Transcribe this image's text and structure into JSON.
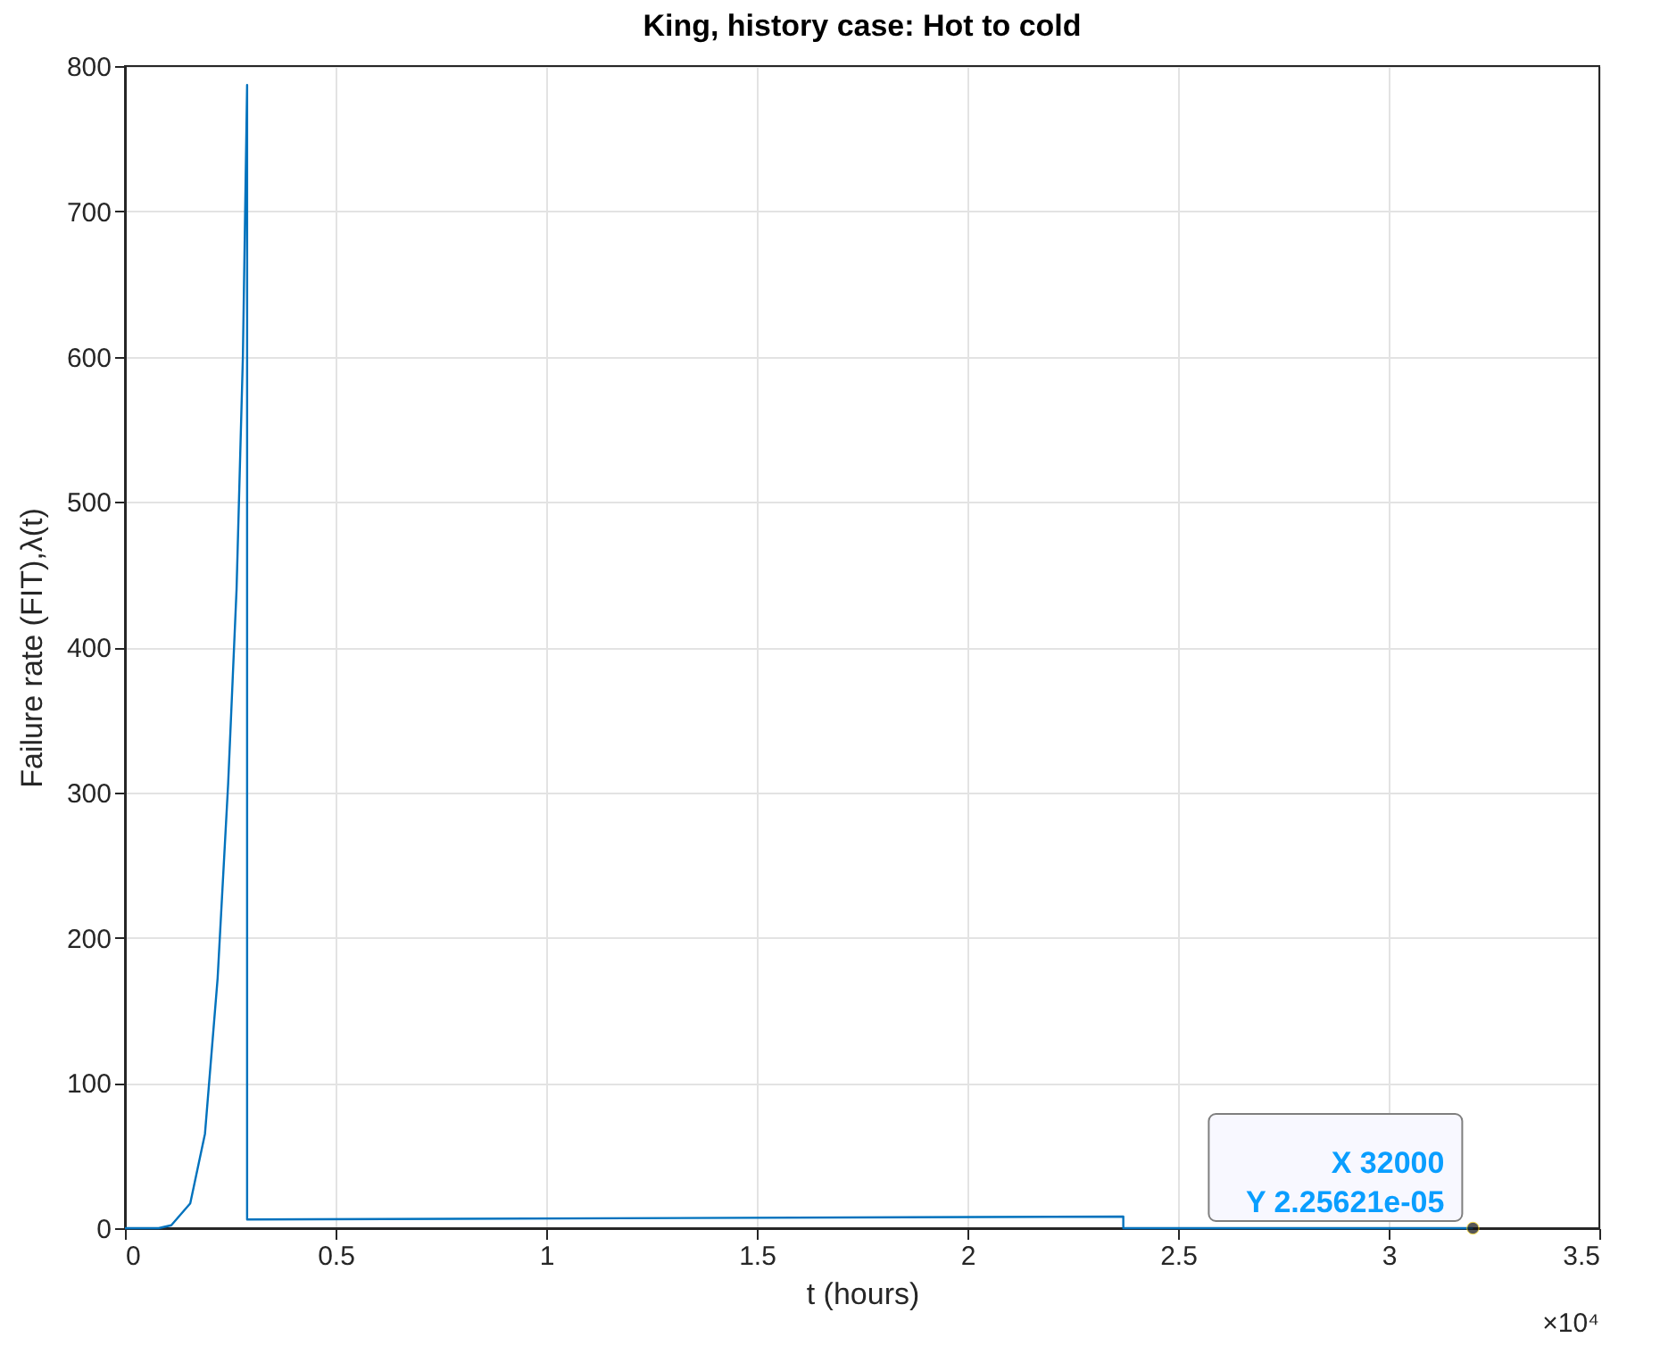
{
  "chart_data": {
    "type": "line",
    "title": "King, history case: Hot to cold",
    "xlabel": "t (hours)",
    "ylabel": "Failure rate (FIT),λ(t)",
    "series": [
      {
        "color": "#0072bd",
        "x": [
          0,
          0.08,
          0.11,
          0.155,
          0.19,
          0.22,
          0.245,
          0.265,
          0.28,
          0.29,
          0.29,
          2.37,
          2.37,
          3.2
        ],
        "values": [
          0,
          0,
          2,
          17,
          65,
          172,
          306,
          440,
          600,
          787,
          6,
          8,
          0,
          0
        ]
      }
    ],
    "xlim": [
      0,
      3.5
    ],
    "ylim": [
      0,
      800
    ],
    "xticks": [
      0,
      0.5,
      1,
      1.5,
      2,
      2.5,
      3,
      3.5
    ],
    "yticks": [
      0,
      100,
      200,
      300,
      400,
      500,
      600,
      700,
      800
    ],
    "annotations": [
      {
        "text": "X 32000\nY 2.25621e-05",
        "x": 3.2,
        "y": 2.25621e-05
      },
      "×10⁴"
    ],
    "grid": true,
    "marker": "none",
    "line_style": "solid"
  }
}
